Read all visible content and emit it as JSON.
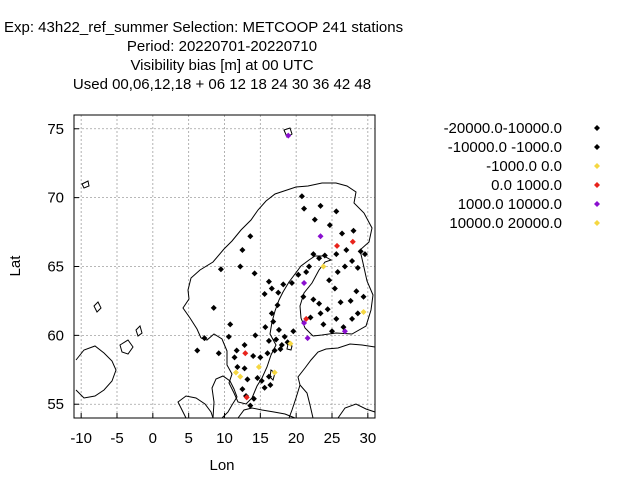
{
  "chart_data": {
    "type": "scatter",
    "title_lines": [
      "Exp: 43h22_ref_summer   Selection: METCOOP    241 stations",
      "Period: 20220701-20220710",
      "Visibility bias [m] at  00 UTC",
      "Used  00,06,12,18  + 06 12 18 24 30 36 42 48"
    ],
    "xlabel": "Lon",
    "ylabel": "Lat",
    "xlim": [
      -11,
      31
    ],
    "ylim": [
      54,
      76
    ],
    "xticks": [
      -10,
      -5,
      0,
      5,
      10,
      15,
      20,
      25,
      30
    ],
    "yticks": [
      55,
      60,
      65,
      70,
      75
    ],
    "grid": true,
    "legend_position": "right",
    "series": [
      {
        "name": "-20000.0-10000.0",
        "color": "#000000",
        "points": []
      },
      {
        "name": "-10000.0 -1000.0",
        "color": "#000000",
        "points": [
          [
            6.2,
            58.9
          ],
          [
            7.2,
            59.8
          ],
          [
            8.5,
            62.0
          ],
          [
            9.2,
            58.7
          ],
          [
            10.6,
            59.9
          ],
          [
            10.8,
            60.8
          ],
          [
            11.4,
            58.4
          ],
          [
            11.8,
            57.7
          ],
          [
            12.5,
            56.1
          ],
          [
            12.8,
            57.6
          ],
          [
            13.0,
            55.6
          ],
          [
            13.2,
            56.8
          ],
          [
            13.6,
            54.9
          ],
          [
            14.1,
            55.4
          ],
          [
            14.6,
            56.9
          ],
          [
            15.2,
            56.7
          ],
          [
            15.6,
            56.2
          ],
          [
            16.2,
            57.0
          ],
          [
            16.4,
            56.4
          ],
          [
            14.0,
            58.5
          ],
          [
            15.0,
            58.4
          ],
          [
            16.0,
            58.7
          ],
          [
            17.0,
            58.9
          ],
          [
            16.2,
            59.6
          ],
          [
            17.2,
            59.7
          ],
          [
            18.0,
            59.3
          ],
          [
            18.4,
            59.9
          ],
          [
            17.6,
            60.4
          ],
          [
            18.8,
            59.5
          ],
          [
            19.6,
            60.3
          ],
          [
            16.8,
            61.0
          ],
          [
            17.4,
            62.2
          ],
          [
            15.6,
            63.0
          ],
          [
            16.6,
            63.4
          ],
          [
            17.5,
            63.1
          ],
          [
            18.2,
            63.7
          ],
          [
            19.4,
            63.8
          ],
          [
            20.3,
            64.4
          ],
          [
            21.4,
            64.6
          ],
          [
            21.0,
            62.8
          ],
          [
            22.4,
            62.6
          ],
          [
            23.2,
            62.3
          ],
          [
            22.0,
            61.3
          ],
          [
            23.4,
            61.6
          ],
          [
            24.4,
            61.9
          ],
          [
            23.8,
            60.8
          ],
          [
            25.0,
            60.3
          ],
          [
            25.6,
            61.2
          ],
          [
            26.6,
            60.6
          ],
          [
            27.8,
            61.2
          ],
          [
            28.6,
            61.6
          ],
          [
            27.6,
            62.5
          ],
          [
            28.4,
            63.2
          ],
          [
            29.4,
            62.8
          ],
          [
            26.2,
            62.4
          ],
          [
            25.4,
            63.4
          ],
          [
            24.6,
            64.0
          ],
          [
            25.8,
            64.6
          ],
          [
            26.8,
            65.0
          ],
          [
            27.8,
            65.4
          ],
          [
            28.6,
            64.9
          ],
          [
            29.6,
            65.9
          ],
          [
            29.0,
            66.1
          ],
          [
            24.0,
            65.8
          ],
          [
            23.2,
            65.6
          ],
          [
            22.4,
            65.9
          ],
          [
            21.8,
            65.0
          ],
          [
            25.6,
            65.9
          ],
          [
            27.0,
            66.2
          ],
          [
            26.4,
            67.4
          ],
          [
            28.0,
            67.6
          ],
          [
            24.7,
            68.0
          ],
          [
            22.6,
            68.4
          ],
          [
            21.1,
            69.2
          ],
          [
            20.8,
            70.1
          ],
          [
            23.4,
            69.4
          ],
          [
            25.6,
            69.0
          ],
          [
            12.5,
            66.2
          ],
          [
            13.6,
            67.2
          ],
          [
            12.2,
            65.0
          ],
          [
            14.2,
            64.5
          ],
          [
            16.2,
            63.9
          ],
          [
            9.5,
            64.8
          ],
          [
            11.7,
            58.9
          ],
          [
            12.8,
            59.3
          ],
          [
            14.3,
            60.0
          ],
          [
            15.7,
            60.6
          ],
          [
            16.6,
            61.6
          ],
          [
            17.8,
            59.0
          ]
        ]
      },
      {
        "name": "-1000.0 0.0",
        "color": "#f5d742",
        "points": [
          [
            12.2,
            57.0
          ],
          [
            11.6,
            57.3
          ],
          [
            14.8,
            57.7
          ],
          [
            17.0,
            57.3
          ],
          [
            19.2,
            59.4
          ],
          [
            23.8,
            65.0
          ],
          [
            29.4,
            61.7
          ]
        ]
      },
      {
        "name": "0.0 1000.0",
        "color": "#e8231b",
        "points": [
          [
            12.9,
            58.7
          ],
          [
            13.1,
            55.5
          ],
          [
            21.4,
            61.2
          ],
          [
            25.7,
            66.5
          ],
          [
            27.9,
            66.8
          ]
        ]
      },
      {
        "name": "1000.0 10000.0",
        "color": "#8a0fcf",
        "points": [
          [
            18.9,
            74.5
          ],
          [
            23.4,
            67.2
          ],
          [
            21.1,
            63.8
          ],
          [
            21.1,
            60.9
          ],
          [
            21.6,
            59.8
          ],
          [
            26.8,
            60.3
          ]
        ]
      },
      {
        "name": "10000.0 20000.0",
        "color": "#f5d742",
        "points": []
      }
    ]
  }
}
